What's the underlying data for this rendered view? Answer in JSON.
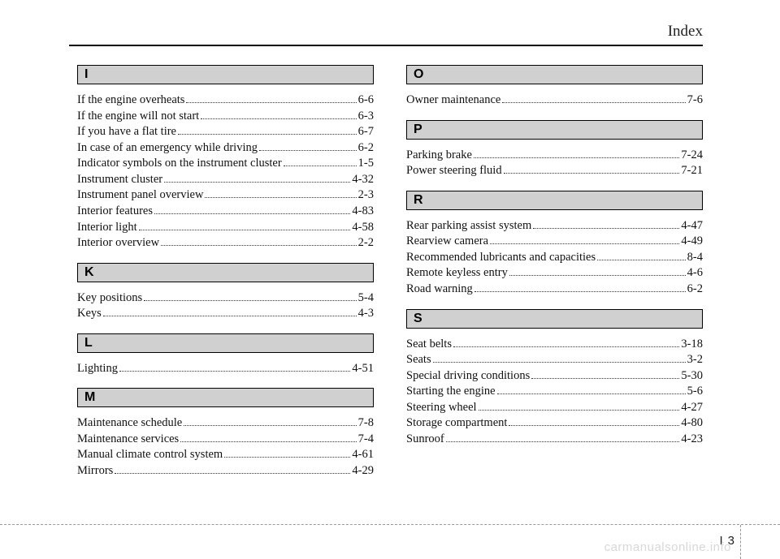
{
  "header": {
    "title": "Index"
  },
  "footer": {
    "chapter": "I",
    "page": "3"
  },
  "watermark": "carmanualsonline.info",
  "left": [
    {
      "letter": "I",
      "entries": [
        {
          "label": "If the engine overheats",
          "page": "6-6"
        },
        {
          "label": "If the engine will not start",
          "page": "6-3"
        },
        {
          "label": "If you have a flat tire",
          "page": "6-7"
        },
        {
          "label": "In case of an emergency while driving",
          "page": "6-2"
        },
        {
          "label": "Indicator symbols on the instrument cluster",
          "page": "1-5"
        },
        {
          "label": "Instrument cluster",
          "page": "4-32"
        },
        {
          "label": "Instrument panel overview",
          "page": "2-3"
        },
        {
          "label": "Interior features",
          "page": "4-83"
        },
        {
          "label": "Interior light",
          "page": "4-58"
        },
        {
          "label": "Interior overview",
          "page": "2-2"
        }
      ]
    },
    {
      "letter": "K",
      "entries": [
        {
          "label": "Key positions",
          "page": "5-4"
        },
        {
          "label": "Keys",
          "page": "4-3"
        }
      ]
    },
    {
      "letter": "L",
      "entries": [
        {
          "label": "Lighting",
          "page": "4-51"
        }
      ]
    },
    {
      "letter": "M",
      "entries": [
        {
          "label": "Maintenance schedule",
          "page": "7-8"
        },
        {
          "label": "Maintenance services",
          "page": "7-4"
        },
        {
          "label": "Manual climate control system",
          "page": "4-61"
        },
        {
          "label": "Mirrors",
          "page": "4-29"
        }
      ]
    }
  ],
  "right": [
    {
      "letter": "O",
      "entries": [
        {
          "label": "Owner maintenance",
          "page": "7-6"
        }
      ]
    },
    {
      "letter": "P",
      "entries": [
        {
          "label": "Parking brake",
          "page": "7-24"
        },
        {
          "label": "Power steering fluid",
          "page": "7-21"
        }
      ]
    },
    {
      "letter": "R",
      "entries": [
        {
          "label": "Rear parking assist system",
          "page": "4-47"
        },
        {
          "label": "Rearview camera",
          "page": "4-49"
        },
        {
          "label": "Recommended lubricants and capacities",
          "page": "8-4"
        },
        {
          "label": "Remote keyless entry",
          "page": "4-6"
        },
        {
          "label": "Road warning",
          "page": "6-2"
        }
      ]
    },
    {
      "letter": "S",
      "entries": [
        {
          "label": "Seat belts",
          "page": "3-18"
        },
        {
          "label": "Seats",
          "page": "3-2"
        },
        {
          "label": "Special driving conditions",
          "page": "5-30"
        },
        {
          "label": "Starting the engine",
          "page": "5-6"
        },
        {
          "label": "Steering wheel",
          "page": "4-27"
        },
        {
          "label": "Storage compartment",
          "page": "4-80"
        },
        {
          "label": "Sunroof",
          "page": "4-23"
        }
      ]
    }
  ]
}
